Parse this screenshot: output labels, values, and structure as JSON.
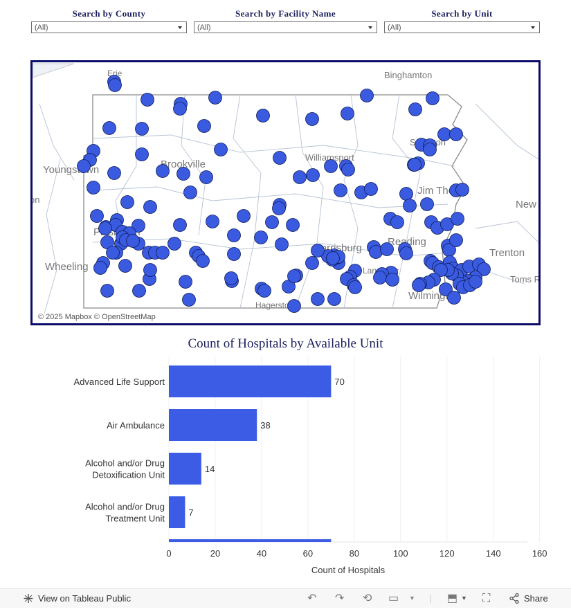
{
  "filters": [
    {
      "label": "Search by County",
      "value": "(All)"
    },
    {
      "label": "Search by Facility Name",
      "value": "(All)"
    },
    {
      "label": "Search by Unit",
      "value": "(All)"
    }
  ],
  "map": {
    "attribution": "© 2025 Mapbox  © OpenStreetMap",
    "marker_color": "#3a5be0",
    "place_labels": [
      {
        "name": "Erie"
      },
      {
        "name": "Binghamton"
      },
      {
        "name": "Youngstown"
      },
      {
        "name": "Brookville"
      },
      {
        "name": "Williamsport"
      },
      {
        "name": "Scranton"
      },
      {
        "name": "Jim Thorpe"
      },
      {
        "name": "New"
      },
      {
        "name": "Harrisburg"
      },
      {
        "name": "Reading"
      },
      {
        "name": "Trenton"
      },
      {
        "name": "Wheeling"
      },
      {
        "name": "Lancaster"
      },
      {
        "name": "Toms R"
      },
      {
        "name": "Wilmington"
      },
      {
        "name": "Hagerstown"
      },
      {
        "name": "Pittsburgh"
      },
      {
        "name": "on"
      }
    ]
  },
  "chart_title": "Count of Hospitals by Available Unit",
  "chart_data": {
    "type": "bar",
    "orientation": "horizontal",
    "title": "Count of Hospitals by Available Unit",
    "categories": [
      [
        "Advanced Life Support"
      ],
      [
        "Air Ambulance"
      ],
      [
        "Alcohol and/or Drug",
        "Detoxification Unit"
      ],
      [
        "Alcohol and/or Drug",
        "Treatment Unit"
      ]
    ],
    "values": [
      70,
      38,
      14,
      7
    ],
    "partial_next_value": 70,
    "xlabel": "Count of Hospitals",
    "xlim": [
      0,
      160
    ],
    "xticks": [
      0,
      20,
      40,
      60,
      80,
      100,
      120,
      140,
      160
    ],
    "bar_color": "#3c5ce6",
    "gridlines": true
  },
  "toolbar": {
    "view_label": "View on Tableau Public",
    "share_label": "Share"
  }
}
